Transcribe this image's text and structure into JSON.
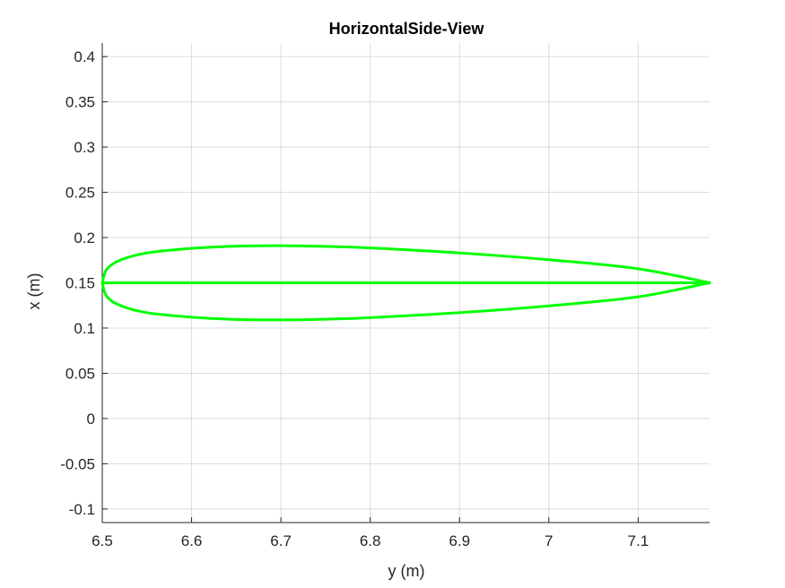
{
  "chart_data": {
    "type": "line",
    "title": "HorizontalSide-View",
    "xlabel": "y (m)",
    "ylabel": "x (m)",
    "xlim": [
      6.5,
      7.18
    ],
    "ylim": [
      -0.115,
      0.415
    ],
    "xticks": [
      6.5,
      6.6,
      6.7,
      6.8,
      6.9,
      7,
      7.1
    ],
    "xtick_labels": [
      "6.5",
      "6.6",
      "6.7",
      "6.8",
      "6.9",
      "7",
      "7.1"
    ],
    "yticks": [
      -0.1,
      -0.05,
      0,
      0.05,
      0.1,
      0.15,
      0.2,
      0.25,
      0.3,
      0.35,
      0.4
    ],
    "ytick_labels": [
      "-0.1",
      "-0.05",
      "0",
      "0.05",
      "0.1",
      "0.15",
      "0.2",
      "0.25",
      "0.3",
      "0.35",
      "0.4"
    ],
    "grid": true,
    "color": "#00ff00",
    "series": [
      {
        "x": [
          6.5,
          6.505,
          6.52,
          6.55,
          6.6,
          6.65,
          6.7,
          6.75,
          6.8,
          6.9,
          7.0,
          7.1,
          7.18
        ],
        "y": [
          0.15,
          0.165,
          0.175,
          0.183,
          0.188,
          0.1905,
          0.191,
          0.1902,
          0.1885,
          0.183,
          0.1755,
          0.1655,
          0.15
        ]
      },
      {
        "x": [
          6.5,
          6.505,
          6.52,
          6.55,
          6.6,
          6.65,
          6.7,
          6.75,
          6.8,
          6.9,
          7.0,
          7.1,
          7.18
        ],
        "y": [
          0.15,
          0.135,
          0.125,
          0.117,
          0.112,
          0.1095,
          0.109,
          0.1098,
          0.1115,
          0.117,
          0.1245,
          0.1345,
          0.15
        ]
      },
      {
        "x": [
          6.5,
          7.18
        ],
        "y": [
          0.15,
          0.15
        ]
      }
    ]
  }
}
